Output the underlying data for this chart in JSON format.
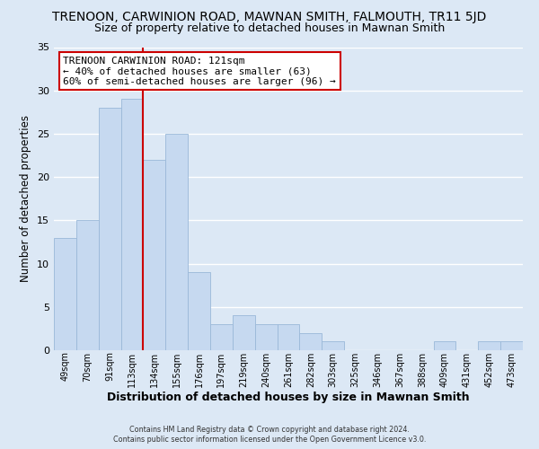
{
  "title": "TRENOON, CARWINION ROAD, MAWNAN SMITH, FALMOUTH, TR11 5JD",
  "subtitle": "Size of property relative to detached houses in Mawnan Smith",
  "xlabel": "Distribution of detached houses by size in Mawnan Smith",
  "ylabel": "Number of detached properties",
  "footer_line1": "Contains HM Land Registry data © Crown copyright and database right 2024.",
  "footer_line2": "Contains public sector information licensed under the Open Government Licence v3.0.",
  "bin_labels": [
    "49sqm",
    "70sqm",
    "91sqm",
    "113sqm",
    "134sqm",
    "155sqm",
    "176sqm",
    "197sqm",
    "219sqm",
    "240sqm",
    "261sqm",
    "282sqm",
    "303sqm",
    "325sqm",
    "346sqm",
    "367sqm",
    "388sqm",
    "409sqm",
    "431sqm",
    "452sqm",
    "473sqm"
  ],
  "bar_values": [
    13,
    15,
    28,
    29,
    22,
    25,
    9,
    3,
    4,
    3,
    3,
    2,
    1,
    0,
    0,
    0,
    0,
    1,
    0,
    1,
    1
  ],
  "bar_color": "#c6d9f0",
  "bar_edge_color": "#9ab8d8",
  "vline_x": 3.5,
  "vline_color": "#cc0000",
  "annotation_title": "TRENOON CARWINION ROAD: 121sqm",
  "annotation_line2": "← 40% of detached houses are smaller (63)",
  "annotation_line3": "60% of semi-detached houses are larger (96) →",
  "annotation_box_color": "#ffffff",
  "annotation_box_edge": "#cc0000",
  "ylim": [
    0,
    35
  ],
  "yticks": [
    0,
    5,
    10,
    15,
    20,
    25,
    30,
    35
  ],
  "bg_color": "#dce8f5",
  "plot_bg_color": "#dce8f5",
  "grid_color": "#ffffff",
  "title_fontsize": 10,
  "subtitle_fontsize": 9,
  "xlabel_fontsize": 9,
  "ylabel_fontsize": 8.5
}
